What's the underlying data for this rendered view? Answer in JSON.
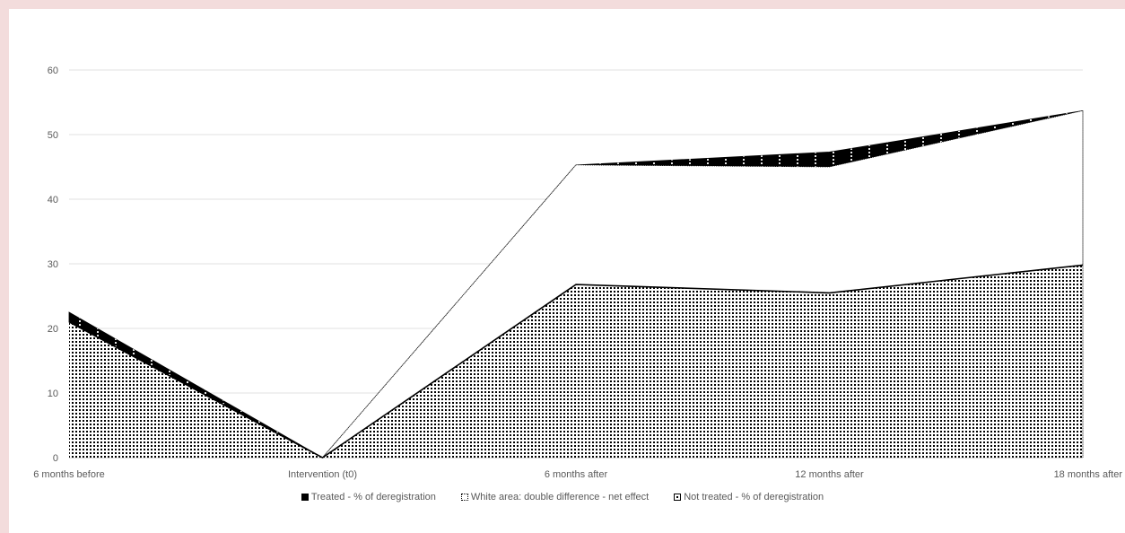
{
  "chart_data": {
    "type": "area",
    "categories": [
      "6 months before",
      "Intervention (t0)",
      "6 months after",
      "12 months after",
      "18 months after"
    ],
    "ylim": [
      0,
      60
    ],
    "yticks": [
      0,
      10,
      20,
      30,
      40,
      50,
      60
    ],
    "grid": true,
    "legend_position": "bottom",
    "series": [
      {
        "name": "Treated - % of deregistration",
        "values": [
          22.5,
          0,
          45.3,
          47.3,
          53.7
        ],
        "color": "#000000"
      },
      {
        "name": "White area: double difference - net effect",
        "values": [
          21.0,
          0,
          45.3,
          45.0,
          53.7
        ],
        "color": "#ffffff"
      },
      {
        "name": "Not treated - % of deregistration",
        "values": [
          21.0,
          0,
          26.8,
          25.5,
          29.8
        ],
        "color": "#000000"
      }
    ]
  },
  "legend": {
    "treated": "Treated - % of deregistration",
    "white": "White area: double difference - net effect",
    "not_treated": "Not treated - % of deregistration"
  }
}
